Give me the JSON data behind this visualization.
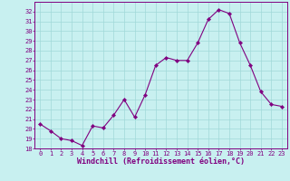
{
  "x": [
    0,
    1,
    2,
    3,
    4,
    5,
    6,
    7,
    8,
    9,
    10,
    11,
    12,
    13,
    14,
    15,
    16,
    17,
    18,
    19,
    20,
    21,
    22,
    23
  ],
  "y": [
    20.5,
    19.8,
    19.0,
    18.8,
    18.3,
    20.3,
    20.1,
    21.4,
    23.0,
    21.2,
    23.5,
    26.5,
    27.3,
    27.0,
    27.0,
    28.8,
    31.2,
    32.2,
    31.8,
    28.8,
    26.5,
    23.8,
    22.5,
    22.3
  ],
  "line_color": "#800080",
  "marker": "D",
  "marker_size": 2.2,
  "bg_color": "#c8f0f0",
  "grid_color": "#a0d8d8",
  "xlabel": "Windchill (Refroidissement éolien,°C)",
  "xlabel_color": "#800080",
  "tick_color": "#800080",
  "ylim": [
    18,
    33
  ],
  "xlim": [
    -0.5,
    23.5
  ],
  "yticks": [
    18,
    19,
    20,
    21,
    22,
    23,
    24,
    25,
    26,
    27,
    28,
    29,
    30,
    31,
    32
  ],
  "xticks": [
    0,
    1,
    2,
    3,
    4,
    5,
    6,
    7,
    8,
    9,
    10,
    11,
    12,
    13,
    14,
    15,
    16,
    17,
    18,
    19,
    20,
    21,
    22,
    23
  ],
  "spine_color": "#800080",
  "tick_fontsize": 5.0,
  "xlabel_fontsize": 6.0,
  "linewidth": 0.8
}
